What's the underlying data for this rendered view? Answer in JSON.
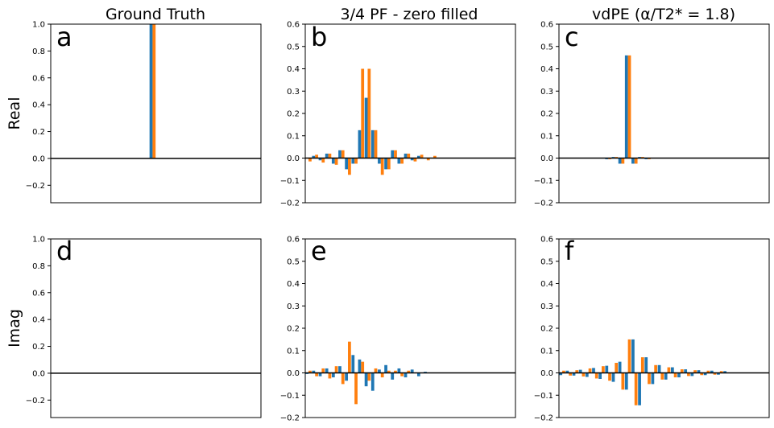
{
  "figure": {
    "column_titles": [
      "Ground Truth",
      "3/4 PF - zero filled",
      "vdPE (α/T2* = 1.8)"
    ],
    "row_labels": [
      "Real",
      "Imag"
    ],
    "colors": {
      "series1": "#1f77b4",
      "series2": "#ff7f0e",
      "axis": "#000000",
      "zero_line": "#000000"
    }
  },
  "chart_data": [
    {
      "panel": "a",
      "type": "bar",
      "row": "Real",
      "column": "Ground Truth",
      "ylim": [
        -0.33,
        1.0
      ],
      "yticks": [
        -0.2,
        0.0,
        0.2,
        0.4,
        0.6,
        0.8,
        1.0
      ],
      "ytick_labels": [
        "−0.2",
        "0.0",
        "0.2",
        "0.4",
        "0.6",
        "0.8",
        "1.0"
      ],
      "xlim": [
        -0.5,
        31.5
      ],
      "series": [
        {
          "name": "series1",
          "color": "#1f77b4",
          "values": [
            0,
            0,
            0,
            0,
            0,
            0,
            0,
            0,
            0,
            0,
            0,
            0,
            0,
            0,
            0,
            1.0,
            0,
            0,
            0,
            0,
            0,
            0,
            0,
            0,
            0,
            0,
            0,
            0,
            0,
            0,
            0,
            0
          ]
        },
        {
          "name": "series2",
          "color": "#ff7f0e",
          "values": [
            0,
            0,
            0,
            0,
            0,
            0,
            0,
            0,
            0,
            0,
            0,
            0,
            0,
            0,
            0,
            1.0,
            0,
            0,
            0,
            0,
            0,
            0,
            0,
            0,
            0,
            0,
            0,
            0,
            0,
            0,
            0,
            0
          ]
        }
      ]
    },
    {
      "panel": "b",
      "type": "bar",
      "row": "Real",
      "column": "3/4 PF - zero filled",
      "ylim": [
        -0.2,
        0.6
      ],
      "yticks": [
        -0.2,
        -0.1,
        0.0,
        0.1,
        0.2,
        0.3,
        0.4,
        0.5,
        0.6
      ],
      "ytick_labels": [
        "−0.2",
        "−0.1",
        "0.0",
        "0.1",
        "0.2",
        "0.3",
        "0.4",
        "0.5",
        "0.6"
      ],
      "xlim": [
        -0.5,
        31.5
      ],
      "series": [
        {
          "name": "series1",
          "color": "#1f77b4",
          "values": [
            0,
            0.01,
            -0.01,
            0.02,
            -0.025,
            0.035,
            -0.05,
            -0.025,
            0.125,
            0.27,
            0.125,
            -0.025,
            -0.05,
            0.035,
            -0.025,
            0.02,
            -0.01,
            0.01,
            0,
            0,
            0,
            0,
            0,
            0,
            0,
            0,
            0,
            0,
            0,
            0,
            0,
            0
          ]
        },
        {
          "name": "series2",
          "color": "#ff7f0e",
          "values": [
            -0.015,
            0.015,
            -0.02,
            0.02,
            -0.03,
            0.035,
            -0.075,
            -0.025,
            0.4,
            0.4,
            0.125,
            -0.075,
            -0.05,
            0.035,
            -0.025,
            0.02,
            -0.015,
            0.015,
            -0.01,
            0.01,
            0,
            0,
            0,
            0,
            0,
            0,
            0,
            0,
            0,
            0,
            0,
            0
          ]
        }
      ]
    },
    {
      "panel": "c",
      "type": "bar",
      "row": "Real",
      "column": "vdPE (α/T2* = 1.8)",
      "ylim": [
        -0.2,
        0.6
      ],
      "yticks": [
        -0.2,
        -0.1,
        0.0,
        0.1,
        0.2,
        0.3,
        0.4,
        0.5,
        0.6
      ],
      "ytick_labels": [
        "−0.2",
        "−0.1",
        "0.0",
        "0.1",
        "0.2",
        "0.3",
        "0.4",
        "0.5",
        "0.6"
      ],
      "xlim": [
        -0.5,
        31.5
      ],
      "series": [
        {
          "name": "series1",
          "color": "#1f77b4",
          "values": [
            0,
            0,
            0,
            0,
            0,
            0,
            0,
            -0.005,
            0.005,
            -0.025,
            0.46,
            -0.025,
            0.005,
            -0.005,
            0,
            0,
            0,
            0,
            0,
            0,
            0,
            0,
            0,
            0,
            0,
            0,
            0,
            0,
            0,
            0,
            0,
            0
          ]
        },
        {
          "name": "series2",
          "color": "#ff7f0e",
          "values": [
            0,
            0,
            0,
            0,
            0,
            0,
            0,
            -0.005,
            0.005,
            -0.025,
            0.46,
            -0.025,
            0.005,
            -0.005,
            0,
            0,
            0,
            0,
            0,
            0,
            0,
            0,
            0,
            0,
            0,
            0,
            0,
            0,
            0,
            0,
            0,
            0
          ]
        }
      ]
    },
    {
      "panel": "d",
      "type": "bar",
      "row": "Imag",
      "column": "Ground Truth",
      "ylim": [
        -0.33,
        1.0
      ],
      "yticks": [
        -0.2,
        0.0,
        0.2,
        0.4,
        0.6,
        0.8,
        1.0
      ],
      "ytick_labels": [
        "−0.2",
        "0.0",
        "0.2",
        "0.4",
        "0.6",
        "0.8",
        "1.0"
      ],
      "xlim": [
        -0.5,
        31.5
      ],
      "series": [
        {
          "name": "series1",
          "color": "#1f77b4",
          "values": [
            0,
            0,
            0,
            0,
            0,
            0,
            0,
            0,
            0,
            0,
            0,
            0,
            0,
            0,
            0,
            0,
            0,
            0,
            0,
            0,
            0,
            0,
            0,
            0,
            0,
            0,
            0,
            0,
            0,
            0,
            0,
            0
          ]
        },
        {
          "name": "series2",
          "color": "#ff7f0e",
          "values": [
            0,
            0,
            0,
            0,
            0,
            0,
            0,
            0,
            0,
            0,
            0,
            0,
            0,
            0,
            0,
            0,
            0,
            0,
            0,
            0,
            0,
            0,
            0,
            0,
            0,
            0,
            0,
            0,
            0,
            0,
            0,
            0
          ]
        }
      ]
    },
    {
      "panel": "e",
      "type": "bar",
      "row": "Imag",
      "column": "3/4 PF - zero filled",
      "ylim": [
        -0.2,
        0.6
      ],
      "yticks": [
        -0.2,
        -0.1,
        0.0,
        0.1,
        0.2,
        0.3,
        0.4,
        0.5,
        0.6
      ],
      "ytick_labels": [
        "−0.2",
        "−0.1",
        "0.0",
        "0.1",
        "0.2",
        "0.3",
        "0.4",
        "0.5",
        "0.6"
      ],
      "xlim": [
        -0.5,
        31.5
      ],
      "series": [
        {
          "name": "series1",
          "color": "#1f77b4",
          "values": [
            -0.005,
            0.01,
            -0.015,
            0.02,
            -0.02,
            0.03,
            -0.035,
            0.08,
            0.06,
            -0.06,
            -0.08,
            0.015,
            0.035,
            -0.03,
            0.02,
            -0.02,
            0.015,
            -0.015,
            0.005,
            0,
            0,
            0,
            0,
            0,
            0,
            0,
            0,
            0,
            0,
            0,
            0,
            0
          ]
        },
        {
          "name": "series2",
          "color": "#ff7f0e",
          "values": [
            0.01,
            -0.015,
            0.02,
            -0.025,
            0.03,
            -0.05,
            0.14,
            -0.14,
            0.05,
            -0.035,
            0.02,
            -0.02,
            0.01,
            0.01,
            -0.015,
            0.01,
            0,
            0,
            0,
            0,
            0,
            0,
            0,
            0,
            0,
            0,
            0,
            0,
            0,
            0,
            0,
            0
          ]
        }
      ]
    },
    {
      "panel": "f",
      "type": "bar",
      "row": "Imag",
      "column": "vdPE (α/T2* = 1.8)",
      "ylim": [
        -0.2,
        0.6
      ],
      "yticks": [
        -0.2,
        -0.1,
        0.0,
        0.1,
        0.2,
        0.3,
        0.4,
        0.5,
        0.6
      ],
      "ytick_labels": [
        "−0.2",
        "−0.1",
        "0.0",
        "0.1",
        "0.2",
        "0.3",
        "0.4",
        "0.5",
        "0.6"
      ],
      "xlim": [
        -0.5,
        31.5
      ],
      "series": [
        {
          "name": "series1",
          "color": "#1f77b4",
          "values": [
            -0.01,
            0.01,
            -0.012,
            0.014,
            -0.018,
            0.022,
            -0.027,
            0.032,
            -0.04,
            0.05,
            -0.075,
            0.15,
            -0.145,
            0.07,
            -0.05,
            0.035,
            -0.03,
            0.025,
            -0.02,
            0.016,
            -0.014,
            0.012,
            -0.01,
            0.01,
            -0.008,
            0.008,
            0,
            0,
            0,
            0,
            0,
            0
          ]
        },
        {
          "name": "series2",
          "color": "#ff7f0e",
          "values": [
            0.01,
            -0.012,
            0.012,
            -0.016,
            0.02,
            -0.025,
            0.03,
            -0.035,
            0.045,
            -0.075,
            0.15,
            -0.145,
            0.07,
            -0.05,
            0.035,
            -0.03,
            0.025,
            -0.02,
            0.016,
            -0.014,
            0.012,
            -0.01,
            0.01,
            -0.008,
            0.008,
            0,
            0,
            0,
            0,
            0,
            0,
            0
          ]
        }
      ]
    }
  ]
}
